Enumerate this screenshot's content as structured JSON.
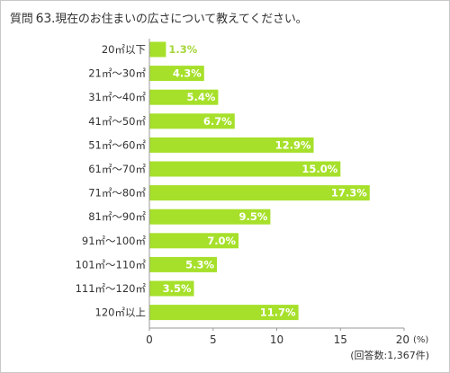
{
  "title": {
    "prefix": "質問",
    "number": "63.",
    "text": "現在のお住まいの広さについて教えてください。"
  },
  "colors": {
    "bar": "#a6e02a",
    "axis": "#999999"
  },
  "chart_data": {
    "type": "bar",
    "orientation": "horizontal",
    "categories": [
      "20㎡以下",
      "21㎡〜30㎡",
      "31㎡〜40㎡",
      "41㎡〜50㎡",
      "51㎡〜60㎡",
      "61㎡〜70㎡",
      "71㎡〜80㎡",
      "81㎡〜90㎡",
      "91㎡〜100㎡",
      "101㎡〜110㎡",
      "111㎡〜120㎡",
      "120㎡以上"
    ],
    "values": [
      1.3,
      4.3,
      5.4,
      6.7,
      12.9,
      15.0,
      17.3,
      9.5,
      7.0,
      5.3,
      3.5,
      11.7
    ],
    "value_labels": [
      "1.3%",
      "4.3%",
      "5.4%",
      "6.7%",
      "12.9%",
      "15.0%",
      "17.3%",
      "9.5%",
      "7.0%",
      "5.3%",
      "3.5%",
      "11.7%"
    ],
    "xlim": [
      0,
      20
    ],
    "xticks": [
      0,
      5,
      10,
      15,
      20
    ],
    "unit_label": "(%)",
    "grid": false,
    "note": "(回答数:1,367件)"
  }
}
